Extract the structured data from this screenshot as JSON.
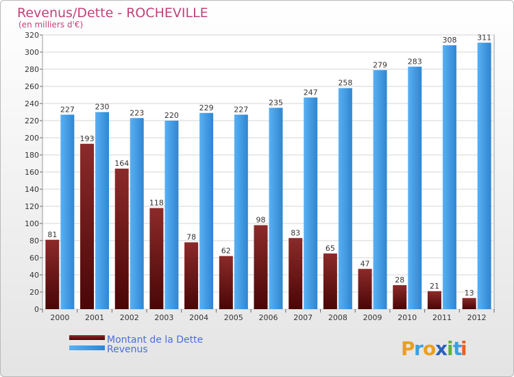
{
  "chart_data": {
    "type": "bar",
    "title": "Revenus/Dette - ROCHEVILLE",
    "subtitle": "(en milliers d'€)",
    "categories": [
      "2000",
      "2001",
      "2002",
      "2003",
      "2004",
      "2005",
      "2006",
      "2007",
      "2008",
      "2009",
      "2010",
      "2011",
      "2012"
    ],
    "series": [
      {
        "name": "Montant de la Dette",
        "color": "#7a1a1a",
        "values": [
          81,
          193,
          164,
          118,
          78,
          62,
          98,
          83,
          65,
          47,
          28,
          21,
          13
        ]
      },
      {
        "name": "Revenus",
        "color": "#3d9ae6",
        "values": [
          227,
          230,
          223,
          220,
          229,
          227,
          235,
          247,
          258,
          279,
          283,
          308,
          311
        ]
      }
    ],
    "yticks": [
      0,
      20,
      40,
      60,
      80,
      100,
      120,
      140,
      160,
      180,
      200,
      220,
      240,
      260,
      280,
      300,
      320
    ],
    "ylim": [
      0,
      320
    ],
    "grid": true,
    "legend": "bottom-left"
  },
  "logo": {
    "letters": [
      "P",
      "r",
      "o",
      "x",
      "i",
      "t",
      "i"
    ],
    "colors": [
      "#e8a020",
      "#3aa0e0",
      "#e8a020",
      "#2a60c0",
      "#60b040",
      "#3aa0e0",
      "#e86020"
    ]
  }
}
